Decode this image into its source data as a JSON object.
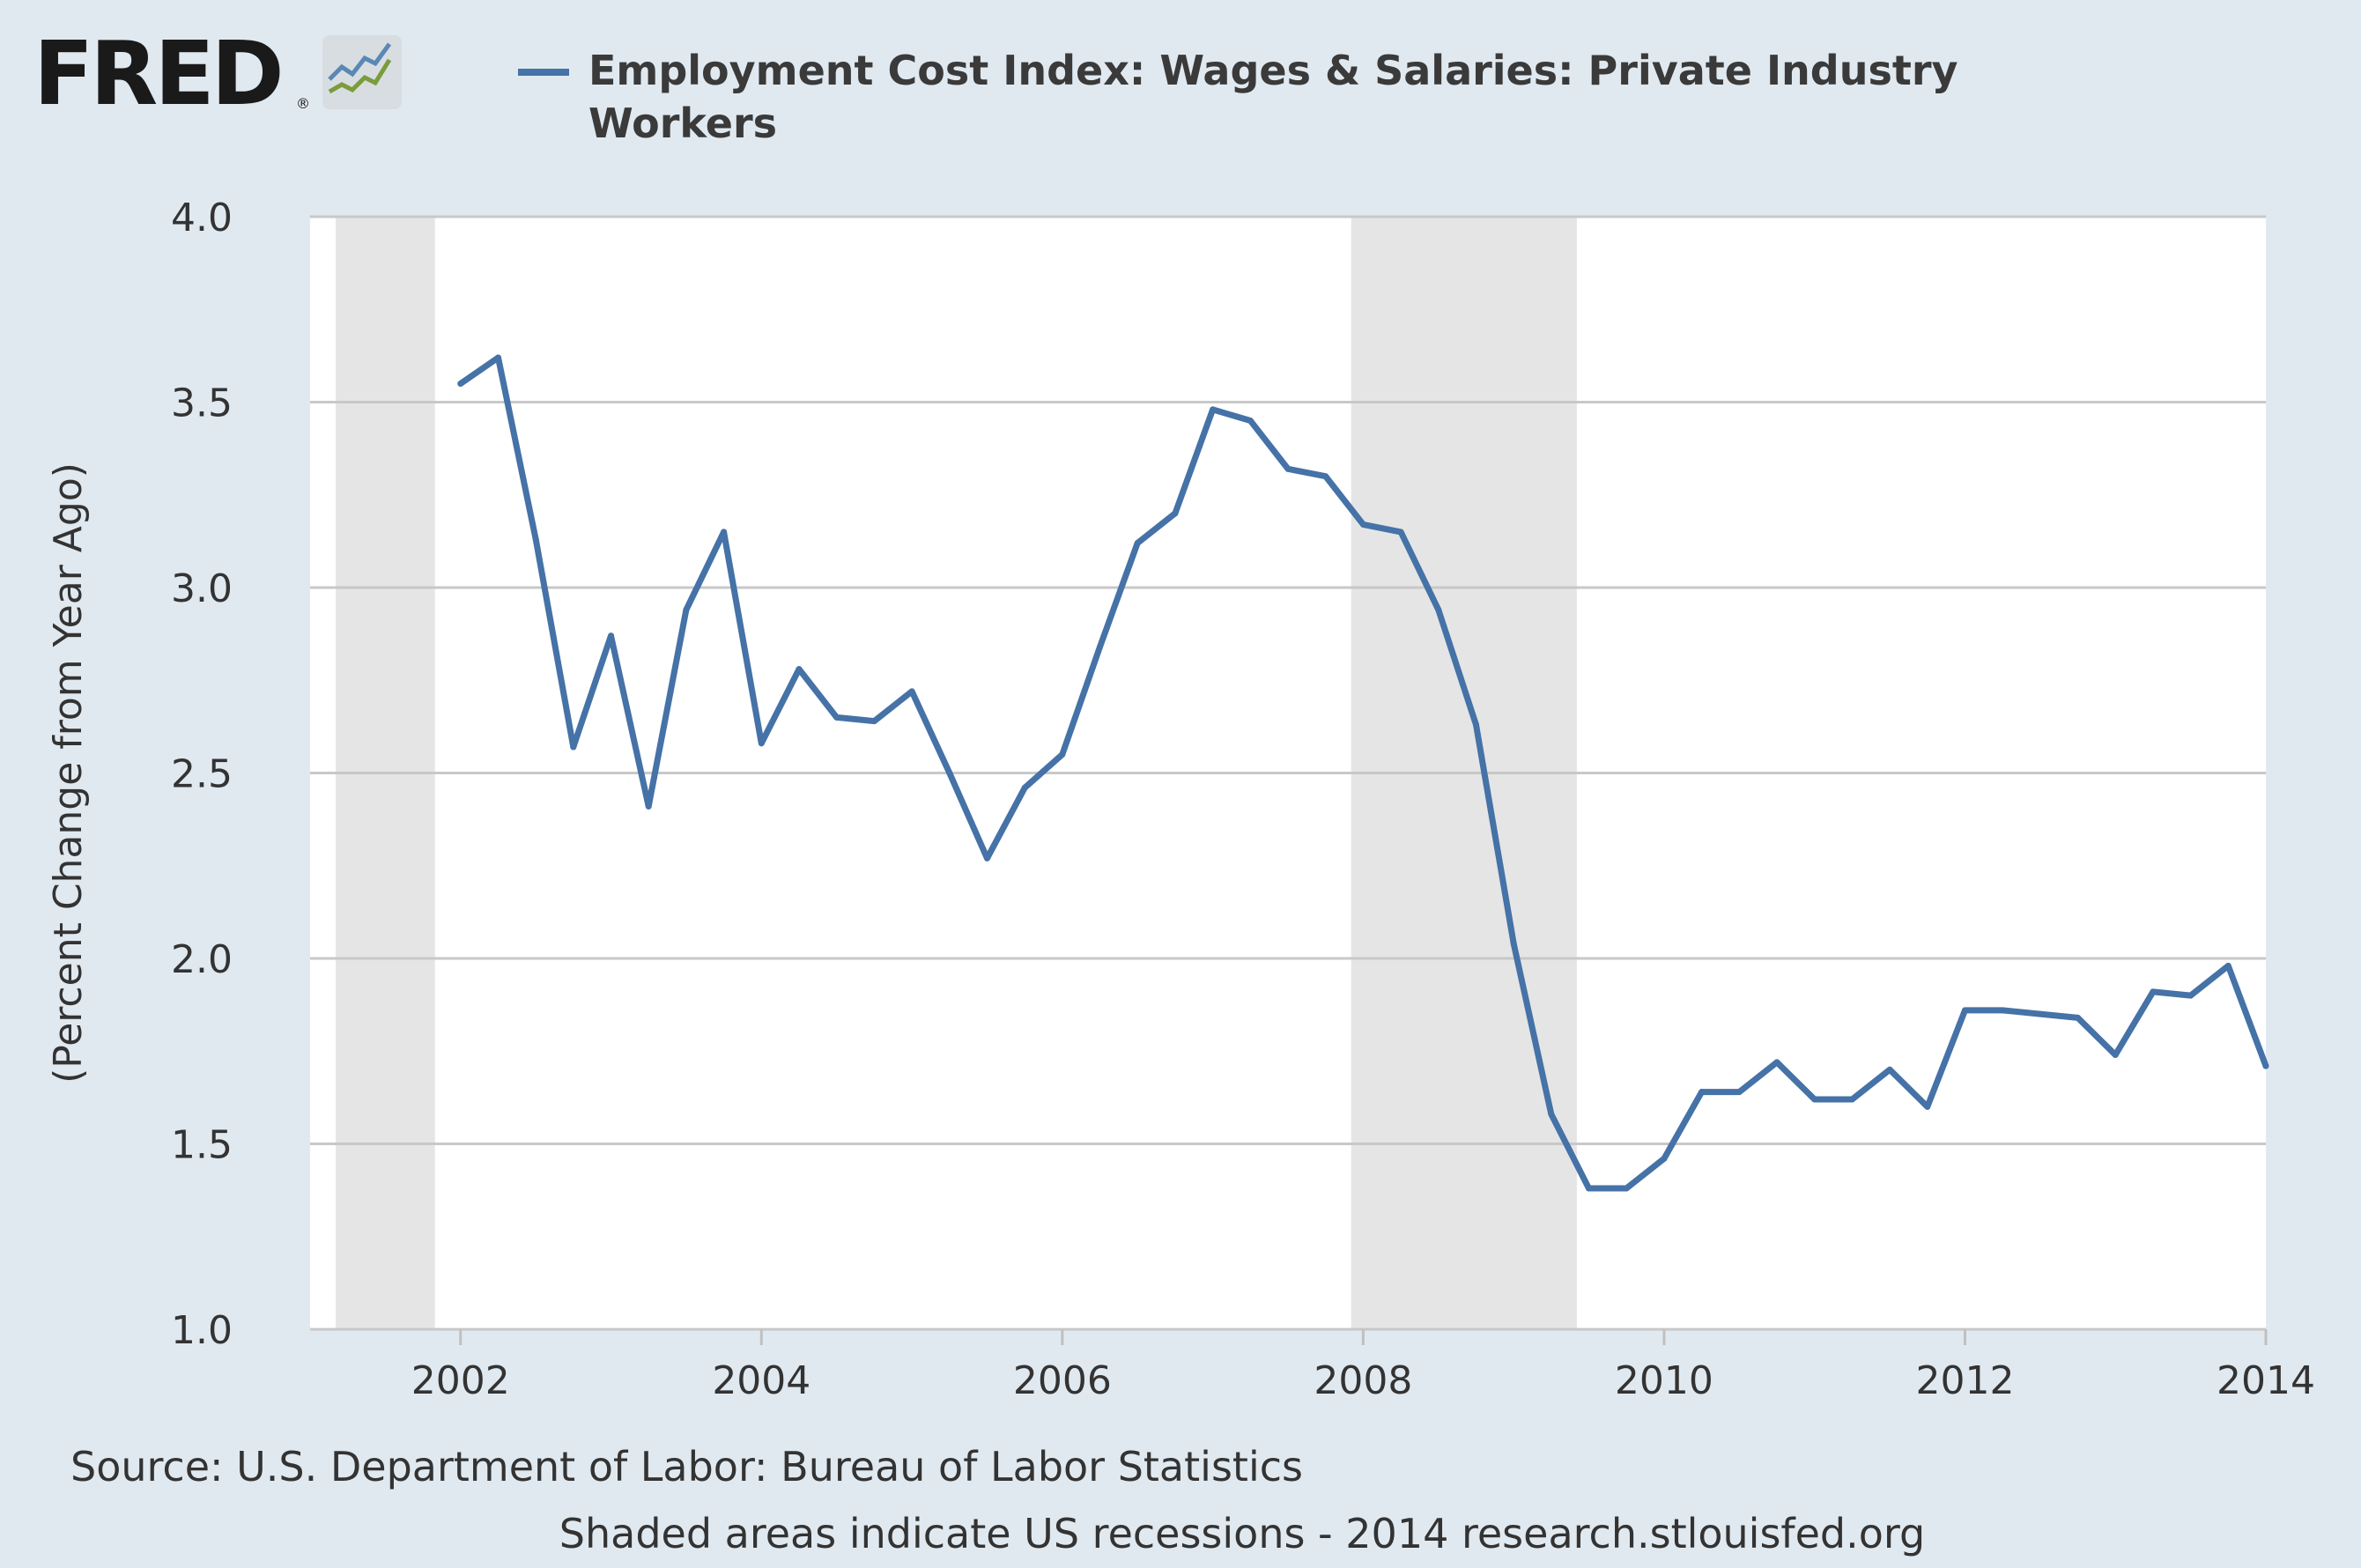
{
  "logo": {
    "text": "FRED",
    "registered": "®"
  },
  "legend": {
    "label": "Employment Cost Index: Wages & Salaries: Private Industry Workers",
    "line_color": "#4572a7"
  },
  "chart_data": {
    "type": "line",
    "title": "Employment Cost Index: Wages & Salaries: Private Industry Workers",
    "xlabel": "",
    "ylabel": "(Percent Change from Year Ago)",
    "xlim": [
      2001.0,
      2014.0
    ],
    "ylim": [
      1.0,
      4.0
    ],
    "x_ticks": [
      2002,
      2004,
      2006,
      2008,
      2010,
      2012,
      2014
    ],
    "x_tick_labels": [
      "2002",
      "2004",
      "2006",
      "2008",
      "2010",
      "2012",
      "2014"
    ],
    "y_ticks": [
      1.0,
      1.5,
      2.0,
      2.5,
      3.0,
      3.5,
      4.0
    ],
    "y_tick_labels": [
      "1.0",
      "1.5",
      "2.0",
      "2.5",
      "3.0",
      "3.5",
      "4.0"
    ],
    "recessions": [
      [
        2001.17,
        2001.83
      ],
      [
        2007.92,
        2009.42
      ]
    ],
    "series": [
      {
        "name": "Employment Cost Index: Wages & Salaries: Private Industry Workers",
        "color": "#4572a7",
        "x": [
          2002.0,
          2002.25,
          2002.5,
          2002.75,
          2003.0,
          2003.25,
          2003.5,
          2003.75,
          2004.0,
          2004.25,
          2004.5,
          2004.75,
          2005.0,
          2005.25,
          2005.5,
          2005.75,
          2006.0,
          2006.25,
          2006.5,
          2006.75,
          2007.0,
          2007.25,
          2007.5,
          2007.75,
          2008.0,
          2008.25,
          2008.5,
          2008.75,
          2009.0,
          2009.25,
          2009.5,
          2009.75,
          2010.0,
          2010.25,
          2010.5,
          2010.75,
          2011.0,
          2011.25,
          2011.5,
          2011.75,
          2012.0,
          2012.25,
          2012.5,
          2012.75,
          2013.0,
          2013.25,
          2013.5,
          2013.75,
          2014.0
        ],
        "values": [
          3.55,
          3.62,
          3.13,
          2.57,
          2.87,
          2.41,
          2.94,
          3.15,
          2.58,
          2.78,
          2.65,
          2.64,
          2.72,
          2.5,
          2.27,
          2.46,
          2.55,
          2.84,
          3.12,
          3.2,
          3.48,
          3.45,
          3.32,
          3.3,
          3.17,
          3.15,
          2.94,
          2.63,
          2.04,
          1.58,
          1.38,
          1.38,
          1.46,
          1.64,
          1.64,
          1.72,
          1.62,
          1.62,
          1.7,
          1.6,
          1.86,
          1.86,
          1.85,
          1.84,
          1.74,
          1.91,
          1.9,
          1.98,
          1.71
        ]
      }
    ]
  },
  "footer": {
    "source": "Source: U.S. Department of Labor: Bureau of Labor Statistics",
    "note": "Shaded areas indicate US recessions - 2014 research.stlouisfed.org"
  }
}
